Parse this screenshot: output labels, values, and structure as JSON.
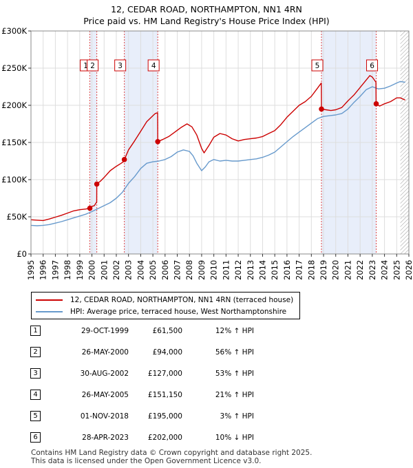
{
  "chart_data": {
    "type": "line",
    "title": "12, CEDAR ROAD, NORTHAMPTON, NN1 4RN",
    "subtitle": "Price paid vs. HM Land Registry's House Price Index (HPI)",
    "xlim": [
      1995,
      2026
    ],
    "ylim": [
      0,
      300000
    ],
    "x_ticks": [
      1995,
      1996,
      1997,
      1998,
      1999,
      2000,
      2001,
      2002,
      2003,
      2004,
      2005,
      2006,
      2007,
      2008,
      2009,
      2010,
      2011,
      2012,
      2013,
      2014,
      2015,
      2016,
      2017,
      2018,
      2019,
      2020,
      2021,
      2022,
      2023,
      2024,
      2025,
      2026
    ],
    "y_ticks": [
      0,
      50000,
      100000,
      150000,
      200000,
      250000,
      300000
    ],
    "y_tick_labels": [
      "£0",
      "£50K",
      "£100K",
      "£150K",
      "£200K",
      "£250K",
      "£300K"
    ],
    "grid": true,
    "highlight_ranges": [
      [
        1999.83,
        2000.4
      ],
      [
        2002.66,
        2005.4
      ],
      [
        2018.83,
        2023.32
      ]
    ],
    "future_hatch_start": 2025.3,
    "series": [
      {
        "name": "12, CEDAR ROAD, NORTHAMPTON, NN1 4RN (terraced house)",
        "color": "#cc0000",
        "x": [
          1995,
          1995.5,
          1996,
          1996.5,
          1997,
          1997.5,
          1998,
          1998.5,
          1999,
          1999.5,
          1999.82,
          1999.83,
          2000,
          2000.2,
          2000.39,
          2000.4,
          2000.7,
          2001,
          2001.5,
          2002,
          2002.4,
          2002.65,
          2002.66,
          2003,
          2003.5,
          2004,
          2004.5,
          2005,
          2005.2,
          2005.39,
          2005.4,
          2005.8,
          2006.3,
          2006.8,
          2007.3,
          2007.8,
          2008.2,
          2008.6,
          2009,
          2009.2,
          2009.6,
          2010,
          2010.5,
          2011,
          2011.5,
          2012,
          2012.5,
          2013,
          2013.5,
          2014,
          2014.5,
          2015,
          2015.5,
          2016,
          2016.5,
          2017,
          2017.5,
          2018,
          2018.5,
          2018.82,
          2018.83,
          2019.2,
          2019.6,
          2020,
          2020.5,
          2021,
          2021.5,
          2022,
          2022.5,
          2022.8,
          2023,
          2023.3,
          2023.31,
          2023.6,
          2024,
          2024.5,
          2025,
          2025.3,
          2025.7
        ],
        "values": [
          46000,
          45500,
          45000,
          47000,
          49500,
          52000,
          55000,
          58000,
          59500,
          60500,
          61500,
          61500,
          64000,
          65000,
          70000,
          94000,
          98000,
          103000,
          112000,
          118000,
          122000,
          125000,
          127000,
          140000,
          152000,
          165000,
          178000,
          186000,
          189000,
          190000,
          151150,
          154000,
          158000,
          164000,
          170000,
          175000,
          171000,
          160000,
          142000,
          136000,
          146000,
          157000,
          162000,
          160000,
          155000,
          152000,
          154000,
          155000,
          156000,
          158000,
          162000,
          166000,
          174000,
          184000,
          192000,
          200000,
          205000,
          212000,
          223000,
          230000,
          195000,
          194000,
          193000,
          194000,
          197000,
          206000,
          214000,
          224000,
          234000,
          240000,
          238000,
          231000,
          202000,
          199000,
          202000,
          205000,
          210000,
          210000,
          207000
        ]
      },
      {
        "name": "HPI: Average price, terraced house, West Northamptonshire",
        "color": "#6699cc",
        "x": [
          1995,
          1995.5,
          1996,
          1996.5,
          1997,
          1997.5,
          1998,
          1998.5,
          1999,
          1999.5,
          2000,
          2000.5,
          2001,
          2001.5,
          2002,
          2002.5,
          2003,
          2003.5,
          2004,
          2004.5,
          2005,
          2005.5,
          2006,
          2006.5,
          2007,
          2007.5,
          2008,
          2008.3,
          2008.6,
          2009,
          2009.3,
          2009.6,
          2010,
          2010.5,
          2011,
          2011.5,
          2012,
          2012.5,
          2013,
          2013.5,
          2014,
          2014.5,
          2015,
          2015.5,
          2016,
          2016.5,
          2017,
          2017.5,
          2018,
          2018.5,
          2019,
          2019.5,
          2020,
          2020.5,
          2021,
          2021.5,
          2022,
          2022.5,
          2023,
          2023.5,
          2024,
          2024.5,
          2025,
          2025.3,
          2025.7
        ],
        "values": [
          38500,
          38000,
          38500,
          39500,
          41500,
          43500,
          46000,
          48500,
          51000,
          53500,
          57000,
          61000,
          65000,
          69000,
          75000,
          83000,
          95000,
          104000,
          115000,
          122000,
          124000,
          125000,
          127000,
          131000,
          137000,
          140000,
          138000,
          132000,
          122000,
          112000,
          117000,
          124000,
          127000,
          125000,
          126000,
          125000,
          125000,
          126000,
          127000,
          128000,
          130000,
          133000,
          137000,
          144000,
          151000,
          158000,
          164000,
          170000,
          176000,
          182000,
          185000,
          186000,
          187000,
          189000,
          195000,
          204000,
          212000,
          221000,
          225000,
          222000,
          223000,
          226000,
          230000,
          232000,
          231000
        ]
      }
    ],
    "sales": [
      {
        "label": "1",
        "x": 1999.83,
        "value": 61500
      },
      {
        "label": "2",
        "x": 2000.4,
        "value": 94000
      },
      {
        "label": "3",
        "x": 2002.66,
        "value": 127000
      },
      {
        "label": "4",
        "x": 2005.4,
        "value": 151150
      },
      {
        "label": "5",
        "x": 2018.83,
        "value": 195000
      },
      {
        "label": "6",
        "x": 2023.32,
        "value": 202000
      }
    ]
  },
  "legend": {
    "property_label": "12, CEDAR ROAD, NORTHAMPTON, NN1 4RN (terraced house)",
    "hpi_label": "HPI: Average price, terraced house, West Northamptonshire",
    "property_color": "#cc0000",
    "hpi_color": "#6699cc"
  },
  "table": [
    {
      "num": "1",
      "date": "29-OCT-1999",
      "price": "£61,500",
      "hpi": "12% ↑ HPI"
    },
    {
      "num": "2",
      "date": "26-MAY-2000",
      "price": "£94,000",
      "hpi": "56% ↑ HPI"
    },
    {
      "num": "3",
      "date": "30-AUG-2002",
      "price": "£127,000",
      "hpi": "53% ↑ HPI"
    },
    {
      "num": "4",
      "date": "26-MAY-2005",
      "price": "£151,150",
      "hpi": "21% ↑ HPI"
    },
    {
      "num": "5",
      "date": "01-NOV-2018",
      "price": "£195,000",
      "hpi": "3% ↑ HPI"
    },
    {
      "num": "6",
      "date": "28-APR-2023",
      "price": "£202,000",
      "hpi": "10% ↓ HPI"
    }
  ],
  "footer": {
    "line1": "Contains HM Land Registry data © Crown copyright and database right 2025.",
    "line2": "This data is licensed under the Open Government Licence v3.0."
  }
}
